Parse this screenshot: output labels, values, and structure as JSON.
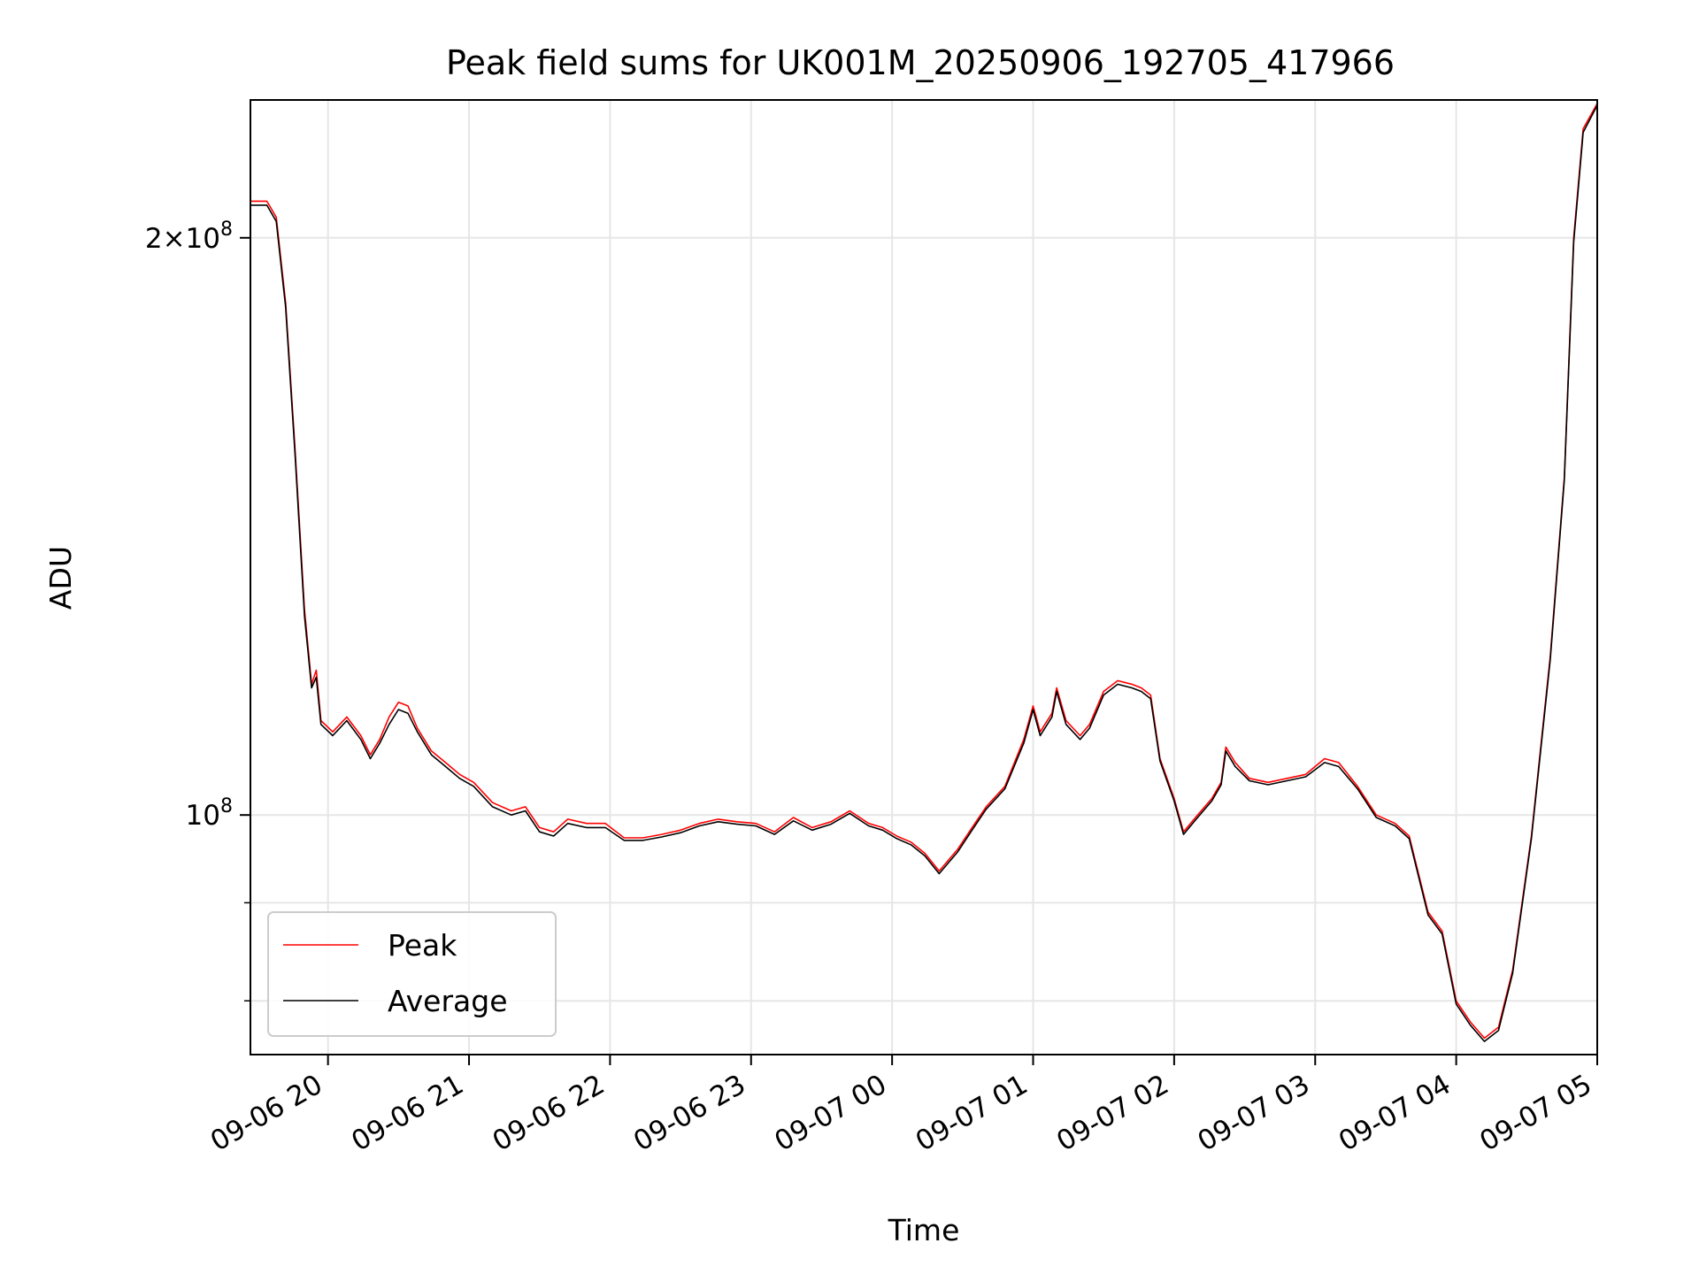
{
  "chart_data": {
    "type": "line",
    "title": "Peak field sums for UK001M_20250906_192705_417966",
    "xlabel": "Time",
    "ylabel": "ADU",
    "y_scale": "log",
    "ylim": [
      75000000,
      236000000
    ],
    "xlim": [
      "2025-09-06 19:27",
      "2025-09-07 05:00"
    ],
    "x_ticks": [
      "09-06 20",
      "09-06 21",
      "09-06 22",
      "09-06 23",
      "09-07 00",
      "09-07 01",
      "09-07 02",
      "09-07 03",
      "09-07 04",
      "09-07 05"
    ],
    "y_major_ticks": [
      {
        "value": 100000000,
        "base": "10",
        "exp": "8",
        "coef": ""
      },
      {
        "value": 200000000,
        "base": "10",
        "exp": "8",
        "coef": "2×"
      }
    ],
    "y_minor_ticks": [
      80000000,
      90000000
    ],
    "grid": true,
    "legend_position": "lower-left",
    "series": [
      {
        "name": "Peak",
        "color": "#ff0000",
        "points": [
          [
            "2025-09-06 19:27",
            209000000
          ],
          [
            "2025-09-06 19:34",
            209000000
          ],
          [
            "2025-09-06 19:38",
            205000000
          ],
          [
            "2025-09-06 19:42",
            185000000
          ],
          [
            "2025-09-06 19:46",
            155000000
          ],
          [
            "2025-09-06 19:50",
            128000000
          ],
          [
            "2025-09-06 19:53",
            117000000
          ],
          [
            "2025-09-06 19:55",
            119000000
          ],
          [
            "2025-09-06 19:57",
            112000000
          ],
          [
            "2025-09-06 20:02",
            110500000
          ],
          [
            "2025-09-06 20:08",
            112500000
          ],
          [
            "2025-09-06 20:14",
            110000000
          ],
          [
            "2025-09-06 20:18",
            107500000
          ],
          [
            "2025-09-06 20:22",
            109500000
          ],
          [
            "2025-09-06 20:26",
            112500000
          ],
          [
            "2025-09-06 20:30",
            114500000
          ],
          [
            "2025-09-06 20:34",
            114000000
          ],
          [
            "2025-09-06 20:38",
            111000000
          ],
          [
            "2025-09-06 20:44",
            108000000
          ],
          [
            "2025-09-06 20:50",
            106500000
          ],
          [
            "2025-09-06 20:56",
            105000000
          ],
          [
            "2025-09-06 21:02",
            104000000
          ],
          [
            "2025-09-06 21:10",
            101500000
          ],
          [
            "2025-09-06 21:18",
            100500000
          ],
          [
            "2025-09-06 21:24",
            101000000
          ],
          [
            "2025-09-06 21:30",
            98500000
          ],
          [
            "2025-09-06 21:36",
            98000000
          ],
          [
            "2025-09-06 21:42",
            99500000
          ],
          [
            "2025-09-06 21:50",
            99000000
          ],
          [
            "2025-09-06 21:58",
            99000000
          ],
          [
            "2025-09-06 22:06",
            97300000
          ],
          [
            "2025-09-06 22:14",
            97300000
          ],
          [
            "2025-09-06 22:22",
            97700000
          ],
          [
            "2025-09-06 22:30",
            98200000
          ],
          [
            "2025-09-06 22:38",
            99000000
          ],
          [
            "2025-09-06 22:46",
            99500000
          ],
          [
            "2025-09-06 22:54",
            99200000
          ],
          [
            "2025-09-06 23:02",
            99000000
          ],
          [
            "2025-09-06 23:10",
            98000000
          ],
          [
            "2025-09-06 23:18",
            99700000
          ],
          [
            "2025-09-06 23:26",
            98500000
          ],
          [
            "2025-09-06 23:34",
            99200000
          ],
          [
            "2025-09-06 23:42",
            100500000
          ],
          [
            "2025-09-06 23:50",
            99000000
          ],
          [
            "2025-09-06 23:56",
            98500000
          ],
          [
            "2025-09-07 00:02",
            97500000
          ],
          [
            "2025-09-07 00:08",
            96800000
          ],
          [
            "2025-09-07 00:14",
            95500000
          ],
          [
            "2025-09-07 00:20",
            93500000
          ],
          [
            "2025-09-07 00:28",
            96000000
          ],
          [
            "2025-09-07 00:34",
            98500000
          ],
          [
            "2025-09-07 00:40",
            101000000
          ],
          [
            "2025-09-07 00:48",
            103500000
          ],
          [
            "2025-09-07 00:56",
            109500000
          ],
          [
            "2025-09-07 01:00",
            114000000
          ],
          [
            "2025-09-07 01:03",
            110500000
          ],
          [
            "2025-09-07 01:08",
            113000000
          ],
          [
            "2025-09-07 01:10",
            116500000
          ],
          [
            "2025-09-07 01:14",
            112000000
          ],
          [
            "2025-09-07 01:20",
            110000000
          ],
          [
            "2025-09-07 01:24",
            111500000
          ],
          [
            "2025-09-07 01:30",
            116000000
          ],
          [
            "2025-09-07 01:36",
            117500000
          ],
          [
            "2025-09-07 01:42",
            117000000
          ],
          [
            "2025-09-07 01:46",
            116500000
          ],
          [
            "2025-09-07 01:50",
            115500000
          ],
          [
            "2025-09-07 01:54",
            107000000
          ],
          [
            "2025-09-07 02:00",
            102000000
          ],
          [
            "2025-09-07 02:04",
            98000000
          ],
          [
            "2025-09-07 02:10",
            100000000
          ],
          [
            "2025-09-07 02:16",
            102000000
          ],
          [
            "2025-09-07 02:20",
            104000000
          ],
          [
            "2025-09-07 02:22",
            108500000
          ],
          [
            "2025-09-07 02:26",
            106500000
          ],
          [
            "2025-09-07 02:32",
            104500000
          ],
          [
            "2025-09-07 02:40",
            104000000
          ],
          [
            "2025-09-07 02:48",
            104500000
          ],
          [
            "2025-09-07 02:56",
            105000000
          ],
          [
            "2025-09-07 03:04",
            107000000
          ],
          [
            "2025-09-07 03:10",
            106500000
          ],
          [
            "2025-09-07 03:18",
            103500000
          ],
          [
            "2025-09-07 03:26",
            100000000
          ],
          [
            "2025-09-07 03:34",
            99000000
          ],
          [
            "2025-09-07 03:40",
            97500000
          ],
          [
            "2025-09-07 03:48",
            89000000
          ],
          [
            "2025-09-07 03:54",
            87000000
          ],
          [
            "2025-09-07 04:00",
            80000000
          ],
          [
            "2025-09-07 04:06",
            78000000
          ],
          [
            "2025-09-07 04:12",
            76500000
          ],
          [
            "2025-09-07 04:18",
            77500000
          ],
          [
            "2025-09-07 04:24",
            83000000
          ],
          [
            "2025-09-07 04:32",
            97500000
          ],
          [
            "2025-09-07 04:40",
            121000000
          ],
          [
            "2025-09-07 04:46",
            150000000
          ],
          [
            "2025-09-07 04:50",
            200000000
          ],
          [
            "2025-09-07 04:54",
            228000000
          ],
          [
            "2025-09-07 05:00",
            235000000
          ]
        ]
      },
      {
        "name": "Average",
        "color": "#000000",
        "points": [
          [
            "2025-09-06 19:27",
            208000000
          ],
          [
            "2025-09-06 19:34",
            208000000
          ],
          [
            "2025-09-06 19:38",
            204000000
          ],
          [
            "2025-09-06 19:42",
            184000000
          ],
          [
            "2025-09-06 19:46",
            154000000
          ],
          [
            "2025-09-06 19:50",
            127000000
          ],
          [
            "2025-09-06 19:53",
            116500000
          ],
          [
            "2025-09-06 19:55",
            118000000
          ],
          [
            "2025-09-06 19:57",
            111500000
          ],
          [
            "2025-09-06 20:02",
            110000000
          ],
          [
            "2025-09-06 20:08",
            112000000
          ],
          [
            "2025-09-06 20:14",
            109500000
          ],
          [
            "2025-09-06 20:18",
            107000000
          ],
          [
            "2025-09-06 20:22",
            109000000
          ],
          [
            "2025-09-06 20:26",
            111500000
          ],
          [
            "2025-09-06 20:30",
            113500000
          ],
          [
            "2025-09-06 20:34",
            113000000
          ],
          [
            "2025-09-06 20:38",
            110500000
          ],
          [
            "2025-09-06 20:44",
            107500000
          ],
          [
            "2025-09-06 20:50",
            106000000
          ],
          [
            "2025-09-06 20:56",
            104500000
          ],
          [
            "2025-09-06 21:02",
            103500000
          ],
          [
            "2025-09-06 21:10",
            101000000
          ],
          [
            "2025-09-06 21:18",
            100000000
          ],
          [
            "2025-09-06 21:24",
            100500000
          ],
          [
            "2025-09-06 21:30",
            98000000
          ],
          [
            "2025-09-06 21:36",
            97500000
          ],
          [
            "2025-09-06 21:42",
            99000000
          ],
          [
            "2025-09-06 21:50",
            98500000
          ],
          [
            "2025-09-06 21:58",
            98500000
          ],
          [
            "2025-09-06 22:06",
            97000000
          ],
          [
            "2025-09-06 22:14",
            97000000
          ],
          [
            "2025-09-06 22:22",
            97400000
          ],
          [
            "2025-09-06 22:30",
            97900000
          ],
          [
            "2025-09-06 22:38",
            98700000
          ],
          [
            "2025-09-06 22:46",
            99200000
          ],
          [
            "2025-09-06 22:54",
            98900000
          ],
          [
            "2025-09-06 23:02",
            98700000
          ],
          [
            "2025-09-06 23:10",
            97700000
          ],
          [
            "2025-09-06 23:18",
            99300000
          ],
          [
            "2025-09-06 23:26",
            98200000
          ],
          [
            "2025-09-06 23:34",
            98900000
          ],
          [
            "2025-09-06 23:42",
            100200000
          ],
          [
            "2025-09-06 23:50",
            98700000
          ],
          [
            "2025-09-06 23:56",
            98200000
          ],
          [
            "2025-09-07 00:02",
            97200000
          ],
          [
            "2025-09-07 00:08",
            96500000
          ],
          [
            "2025-09-07 00:14",
            95200000
          ],
          [
            "2025-09-07 00:20",
            93200000
          ],
          [
            "2025-09-07 00:28",
            95700000
          ],
          [
            "2025-09-07 00:34",
            98200000
          ],
          [
            "2025-09-07 00:40",
            100700000
          ],
          [
            "2025-09-07 00:48",
            103200000
          ],
          [
            "2025-09-07 00:56",
            109000000
          ],
          [
            "2025-09-07 01:00",
            113500000
          ],
          [
            "2025-09-07 01:03",
            110000000
          ],
          [
            "2025-09-07 01:08",
            112500000
          ],
          [
            "2025-09-07 01:10",
            116000000
          ],
          [
            "2025-09-07 01:14",
            111500000
          ],
          [
            "2025-09-07 01:20",
            109500000
          ],
          [
            "2025-09-07 01:24",
            111000000
          ],
          [
            "2025-09-07 01:30",
            115500000
          ],
          [
            "2025-09-07 01:36",
            117000000
          ],
          [
            "2025-09-07 01:42",
            116500000
          ],
          [
            "2025-09-07 01:46",
            116000000
          ],
          [
            "2025-09-07 01:50",
            115000000
          ],
          [
            "2025-09-07 01:54",
            106700000
          ],
          [
            "2025-09-07 02:00",
            101700000
          ],
          [
            "2025-09-07 02:04",
            97700000
          ],
          [
            "2025-09-07 02:10",
            99700000
          ],
          [
            "2025-09-07 02:16",
            101700000
          ],
          [
            "2025-09-07 02:20",
            103700000
          ],
          [
            "2025-09-07 02:22",
            108000000
          ],
          [
            "2025-09-07 02:26",
            106000000
          ],
          [
            "2025-09-07 02:32",
            104200000
          ],
          [
            "2025-09-07 02:40",
            103700000
          ],
          [
            "2025-09-07 02:48",
            104200000
          ],
          [
            "2025-09-07 02:56",
            104700000
          ],
          [
            "2025-09-07 03:04",
            106500000
          ],
          [
            "2025-09-07 03:10",
            106000000
          ],
          [
            "2025-09-07 03:18",
            103200000
          ],
          [
            "2025-09-07 03:26",
            99700000
          ],
          [
            "2025-09-07 03:34",
            98700000
          ],
          [
            "2025-09-07 03:40",
            97200000
          ],
          [
            "2025-09-07 03:48",
            88700000
          ],
          [
            "2025-09-07 03:54",
            86700000
          ],
          [
            "2025-09-07 04:00",
            79700000
          ],
          [
            "2025-09-07 04:06",
            77700000
          ],
          [
            "2025-09-07 04:12",
            76200000
          ],
          [
            "2025-09-07 04:18",
            77200000
          ],
          [
            "2025-09-07 04:24",
            82700000
          ],
          [
            "2025-09-07 04:32",
            97200000
          ],
          [
            "2025-09-07 04:40",
            120500000
          ],
          [
            "2025-09-07 04:46",
            149500000
          ],
          [
            "2025-09-07 04:50",
            199000000
          ],
          [
            "2025-09-07 04:54",
            227000000
          ],
          [
            "2025-09-07 05:00",
            234500000
          ]
        ]
      }
    ]
  }
}
